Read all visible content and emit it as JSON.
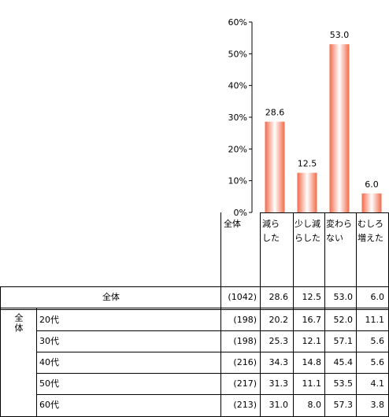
{
  "chart_data": {
    "type": "bar",
    "categories": [
      "減らした",
      "少し減らした",
      "変わらない",
      "むしろ増えた"
    ],
    "values": [
      28.6,
      12.5,
      53.0,
      6.0
    ],
    "value_labels": [
      "28.6",
      "12.5",
      "53.0",
      "6.0"
    ],
    "ylim": [
      0,
      60
    ],
    "yticks": [
      "0%",
      "10%",
      "20%",
      "30%",
      "40%",
      "50%",
      "60%"
    ],
    "grid": false,
    "bar_color_edge": "#f26a4a",
    "bar_color_center": "#ffffff"
  },
  "table": {
    "header": {
      "total_label": "全体",
      "columns": [
        [
          "減ら",
          "した"
        ],
        [
          "少し減",
          "らした"
        ],
        [
          "変わら",
          "ない"
        ],
        [
          "むしろ",
          "増えた"
        ]
      ]
    },
    "total_row": {
      "label": "全体",
      "n": "(1042)",
      "values": [
        "28.6",
        "12.5",
        "53.0",
        "6.0"
      ]
    },
    "group_label": "全体",
    "rows": [
      {
        "label": "20代",
        "n": "(198)",
        "values": [
          "20.2",
          "16.7",
          "52.0",
          "11.1"
        ]
      },
      {
        "label": "30代",
        "n": "(198)",
        "values": [
          "25.3",
          "12.1",
          "57.1",
          "5.6"
        ]
      },
      {
        "label": "40代",
        "n": "(216)",
        "values": [
          "34.3",
          "14.8",
          "45.4",
          "5.6"
        ]
      },
      {
        "label": "50代",
        "n": "(217)",
        "values": [
          "31.3",
          "11.1",
          "53.5",
          "4.1"
        ]
      },
      {
        "label": "60代",
        "n": "(213)",
        "values": [
          "31.0",
          "8.0",
          "57.3",
          "3.8"
        ]
      }
    ]
  }
}
